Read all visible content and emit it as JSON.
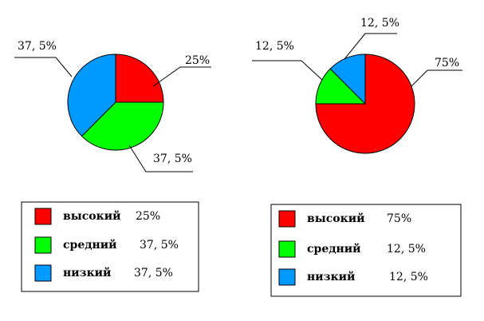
{
  "chart_data": [
    {
      "type": "pie",
      "slices": [
        {
          "label": "высокий",
          "value": 25,
          "value_text": "25%",
          "color": "#ff0000"
        },
        {
          "label": "средний",
          "value": 37.5,
          "value_text": "37, 5%",
          "color": "#00ff00"
        },
        {
          "label": "низкий",
          "value": 37.5,
          "value_text": "37, 5%",
          "color": "#0099ff"
        }
      ],
      "legend": "bottom"
    },
    {
      "type": "pie",
      "slices": [
        {
          "label": "высокий",
          "value": 75,
          "value_text": "75%",
          "color": "#ff0000"
        },
        {
          "label": "средний",
          "value": 12.5,
          "value_text": "12, 5%",
          "color": "#00ff00"
        },
        {
          "label": "низкий",
          "value": 12.5,
          "value_text": "12, 5%",
          "color": "#0099ff"
        }
      ],
      "legend": "bottom"
    }
  ]
}
